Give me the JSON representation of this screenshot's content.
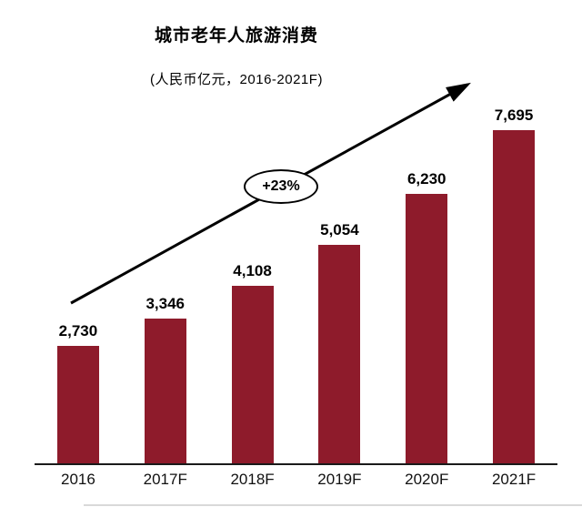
{
  "page": {
    "background": "#ffffff"
  },
  "chart_data": {
    "type": "bar",
    "title": "城市老年人旅游消费",
    "subtitle": "(人民币亿元，2016-2021F)",
    "categories": [
      "2016",
      "2017F",
      "2018F",
      "2019F",
      "2020F",
      "2021F"
    ],
    "values": [
      2730,
      3346,
      4108,
      5054,
      6230,
      7695
    ],
    "value_labels": [
      "2,730",
      "3,346",
      "4,108",
      "5,054",
      "6,230",
      "7,695"
    ],
    "annotation": "+23%",
    "bar_color": "#8e1b2b",
    "axis_color": "#1a1a1a",
    "xlabel": "",
    "ylabel": "",
    "ylim": [
      0,
      8000
    ],
    "grid": false,
    "legend": false,
    "annotation_meaning": "growth-trend-arrow"
  }
}
